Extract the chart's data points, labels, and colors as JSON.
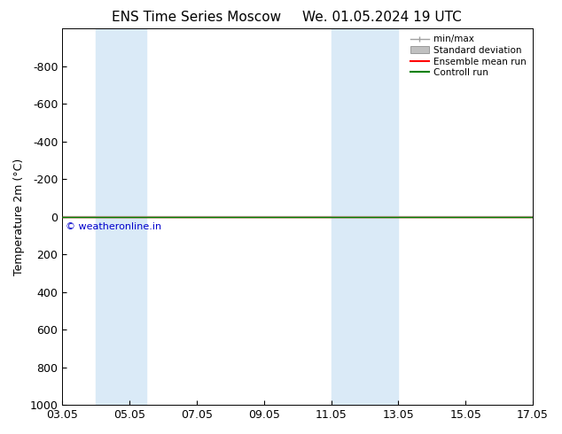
{
  "title_left": "ENS Time Series Moscow",
  "title_right": "We. 01.05.2024 19 UTC",
  "ylabel": "Temperature 2m (°C)",
  "ylim_top": -1000,
  "ylim_bottom": 1000,
  "yticks": [
    -800,
    -600,
    -400,
    -200,
    0,
    200,
    400,
    600,
    800,
    1000
  ],
  "xtick_positions": [
    3,
    5,
    7,
    9,
    11,
    13,
    15,
    17
  ],
  "xtick_labels": [
    "03.05",
    "05.05",
    "07.05",
    "09.05",
    "11.05",
    "13.05",
    "15.05",
    "17.05"
  ],
  "shaded_bands": [
    {
      "x_start": 4.0,
      "x_end": 5.5
    },
    {
      "x_start": 11.0,
      "x_end": 13.0
    }
  ],
  "shaded_color": "#daeaf7",
  "flat_line_y": 0,
  "ensemble_mean_color": "#ff0000",
  "control_run_color": "#008000",
  "std_dev_fill_color": "#c0c0c0",
  "min_max_color": "#a0a0a0",
  "watermark": "© weatheronline.in",
  "watermark_color": "#0000cc",
  "background_color": "#ffffff",
  "legend_items": [
    "min/max",
    "Standard deviation",
    "Ensemble mean run",
    "Controll run"
  ],
  "legend_colors": [
    "#a0a0a0",
    "#c0c0c0",
    "#ff0000",
    "#008000"
  ],
  "title_fontsize": 11,
  "tick_fontsize": 9,
  "ylabel_fontsize": 9
}
